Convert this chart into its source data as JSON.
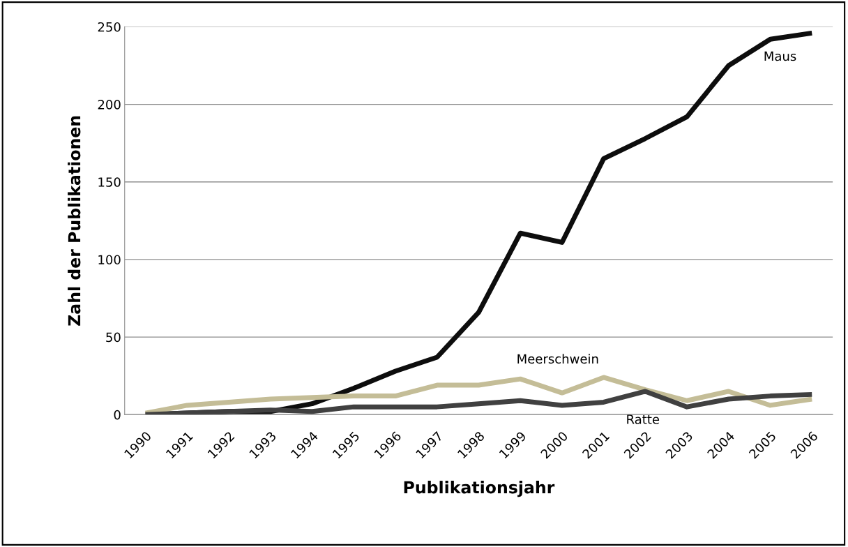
{
  "chart_data": {
    "type": "line",
    "xlabel": "Publikationsjahr",
    "ylabel": "Zahl der Publikationen",
    "categories": [
      "1990",
      "1991",
      "1992",
      "1993",
      "1994",
      "1995",
      "1996",
      "1997",
      "1998",
      "1999",
      "2000",
      "2001",
      "2002",
      "2003",
      "2004",
      "2005",
      "2006"
    ],
    "series": [
      {
        "name": "Maus",
        "color": "#0d0d0d",
        "values": [
          0,
          1,
          2,
          2,
          7,
          17,
          28,
          37,
          66,
          117,
          111,
          165,
          178,
          192,
          225,
          242,
          246
        ]
      },
      {
        "name": "Meerschwein",
        "color": "#c4bd97",
        "values": [
          1,
          6,
          8,
          10,
          11,
          12,
          12,
          19,
          19,
          23,
          14,
          24,
          16,
          9,
          15,
          6,
          10
        ]
      },
      {
        "name": "Ratte",
        "color": "#404040",
        "values": [
          0,
          1,
          2,
          3,
          2,
          5,
          5,
          5,
          7,
          9,
          6,
          8,
          15,
          5,
          10,
          12,
          13
        ]
      }
    ],
    "ylim": [
      0,
      250
    ],
    "yticks": [
      0,
      50,
      100,
      150,
      200,
      250
    ],
    "grid": "y",
    "legend": false,
    "marker": "none",
    "line_style": "solid"
  }
}
